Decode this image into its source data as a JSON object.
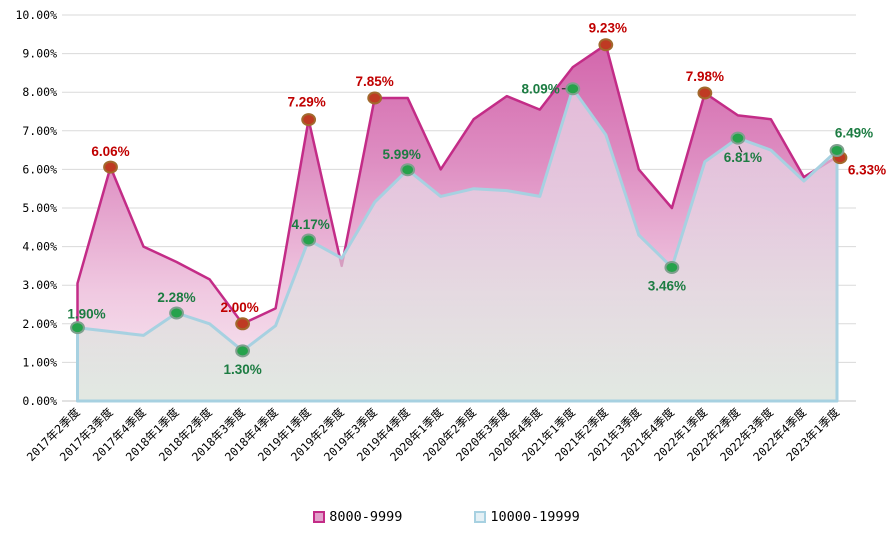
{
  "chart_data": {
    "type": "area",
    "title": "",
    "xlabel": "",
    "ylabel": "",
    "ylim": [
      0,
      10
    ],
    "grid": "horizontal",
    "legend_position": "bottom-center",
    "y_ticks": [
      "0.00%",
      "1.00%",
      "2.00%",
      "3.00%",
      "4.00%",
      "5.00%",
      "6.00%",
      "7.00%",
      "8.00%",
      "9.00%",
      "10.00%"
    ],
    "categories": [
      "2017年2季度",
      "2017年3季度",
      "2017年4季度",
      "2018年1季度",
      "2018年2季度",
      "2018年3季度",
      "2018年4季度",
      "2019年1季度",
      "2019年2季度",
      "2019年3季度",
      "2019年4季度",
      "2020年1季度",
      "2020年2季度",
      "2020年3季度",
      "2020年4季度",
      "2021年1季度",
      "2021年2季度",
      "2021年3季度",
      "2021年4季度",
      "2022年1季度",
      "2022年2季度",
      "2022年3季度",
      "2022年4季度",
      "2023年1季度"
    ],
    "series": [
      {
        "name": "8000-9999",
        "color": "#C32C87",
        "line_width": 2.5,
        "fill_stops": [
          {
            "offset": "0%",
            "color": "#D05CA6",
            "opacity": 1
          },
          {
            "offset": "38%",
            "color": "#DE8EC2",
            "opacity": 1
          },
          {
            "offset": "72%",
            "color": "#F0C9E1",
            "opacity": 1
          },
          {
            "offset": "100%",
            "color": "#F8ECF3",
            "opacity": 1
          }
        ],
        "marker_fill": "#BF3A23",
        "marker_stroke": "#A2692D",
        "label_color": "#C00000",
        "values": [
          3.05,
          6.06,
          4.0,
          3.6,
          3.15,
          2.0,
          2.4,
          7.29,
          3.5,
          7.85,
          7.85,
          6.0,
          7.3,
          7.9,
          7.55,
          8.65,
          9.23,
          6.0,
          5.0,
          7.98,
          7.4,
          7.3,
          5.8,
          6.33
        ],
        "labels": [
          {
            "i": 1,
            "text": "6.06%",
            "dx": 0,
            "dy": -11
          },
          {
            "i": 5,
            "text": "2.00%",
            "dx": -3,
            "dy": -12
          },
          {
            "i": 7,
            "text": "7.29%",
            "dx": -2,
            "dy": -13
          },
          {
            "i": 9,
            "text": "7.85%",
            "dx": 0,
            "dy": -12
          },
          {
            "i": 16,
            "text": "9.23%",
            "dx": 2,
            "dy": -12
          },
          {
            "i": 19,
            "text": "7.98%",
            "dx": 0,
            "dy": -12
          },
          {
            "i": 23,
            "text": "6.33%",
            "dx": 27,
            "dy": 17,
            "mdx": 3,
            "mdy": 1
          }
        ]
      },
      {
        "name": "10000-19999",
        "color": "#A7D1E1",
        "line_width": 3,
        "fill_stops": [
          {
            "offset": "0%",
            "color": "#EEECF4",
            "opacity": 0.62
          },
          {
            "offset": "50%",
            "color": "#E6E1E9",
            "opacity": 0.62
          },
          {
            "offset": "100%",
            "color": "#D4E7D7",
            "opacity": 0.62
          }
        ],
        "marker_fill": "#26A24B",
        "marker_stroke": "#7FA08E",
        "label_color": "#1C7C42",
        "values": [
          1.9,
          1.8,
          1.7,
          2.28,
          2.0,
          1.3,
          1.95,
          4.17,
          3.7,
          5.15,
          5.99,
          5.3,
          5.5,
          5.45,
          5.3,
          8.09,
          6.9,
          4.3,
          3.46,
          6.2,
          6.81,
          6.5,
          5.7,
          6.49
        ],
        "labels": [
          {
            "i": 0,
            "text": "1.90%",
            "dx": 9,
            "dy": -9
          },
          {
            "i": 3,
            "text": "2.28%",
            "dx": 0,
            "dy": -11
          },
          {
            "i": 5,
            "text": "1.30%",
            "dx": 0,
            "dy": 23
          },
          {
            "i": 7,
            "text": "4.17%",
            "dx": 2,
            "dy": -11
          },
          {
            "i": 10,
            "text": "5.99%",
            "dx": -6,
            "dy": -11
          },
          {
            "i": 15,
            "text": "8.09%",
            "dx": -13,
            "dy": 5,
            "anchor": "end",
            "leader": "h"
          },
          {
            "i": 18,
            "text": "3.46%",
            "dx": -5,
            "dy": 23
          },
          {
            "i": 20,
            "text": "6.81%",
            "dx": 5,
            "dy": 24,
            "leader": "d"
          },
          {
            "i": 23,
            "text": "6.49%",
            "dx": 17,
            "dy": -13
          }
        ]
      }
    ],
    "grid_color": "#DADADA",
    "axis_line_color": "#C6C6C6",
    "tick_label_color": "#000000"
  }
}
